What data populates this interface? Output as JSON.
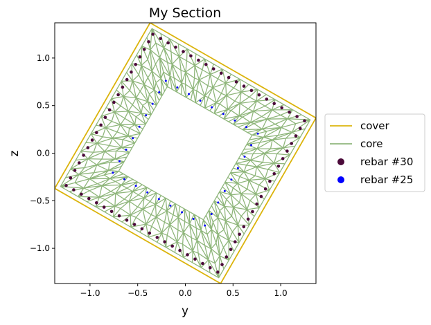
{
  "chart_data": {
    "type": "scatter",
    "title": "My Section",
    "xlabel": "y",
    "ylabel": "z",
    "xlim": [
      -1.37,
      1.37
    ],
    "ylim": [
      -1.37,
      1.37
    ],
    "xticks": [
      -1.0,
      -0.5,
      0.0,
      0.5,
      1.0
    ],
    "yticks": [
      -1.0,
      -0.5,
      0.0,
      0.5,
      1.0
    ],
    "xtick_labels": [
      "−1.0",
      "−0.5",
      "0.0",
      "0.5",
      "1.0"
    ],
    "ytick_labels": [
      "−1.0",
      "−0.5",
      "0.0",
      "0.5",
      "1.0"
    ],
    "grid": false,
    "legend_placement": "outside-right",
    "colors": {
      "cover": "#dbb40c",
      "core": "#8fb67b",
      "rebar30": "#4b0a3a",
      "rebar25": "#0000ff"
    },
    "series": [
      {
        "name": "cover",
        "kind": "line",
        "color": "#dbb40c",
        "points": [
          [
            -1.37,
            -0.37
          ],
          [
            0.37,
            -1.37
          ],
          [
            1.37,
            0.37
          ],
          [
            -0.37,
            1.37
          ],
          [
            -1.37,
            -0.37
          ]
        ]
      },
      {
        "name": "core",
        "kind": "mesh",
        "color": "#8fb67b",
        "outer_ring": [
          [
            -1.31,
            -0.35
          ],
          [
            0.35,
            -1.31
          ],
          [
            1.31,
            0.35
          ],
          [
            -0.35,
            1.31
          ]
        ],
        "inner_ring": [
          [
            -0.7,
            -0.19
          ],
          [
            0.19,
            -0.7
          ],
          [
            0.7,
            0.19
          ],
          [
            -0.19,
            0.7
          ]
        ]
      },
      {
        "name": "rebar #30",
        "kind": "points",
        "color": "#4b0a3a",
        "corners": [
          [
            -1.25,
            -0.34
          ],
          [
            0.34,
            -1.25
          ],
          [
            1.25,
            0.34
          ],
          [
            -0.34,
            1.25
          ]
        ],
        "per_side": 20
      },
      {
        "name": "rebar #25",
        "kind": "points",
        "color": "#0000ff",
        "corners": [
          [
            -0.76,
            -0.205
          ],
          [
            0.205,
            -0.76
          ],
          [
            0.76,
            0.205
          ],
          [
            -0.205,
            0.76
          ]
        ],
        "per_side": 8
      }
    ]
  },
  "legend": {
    "items": [
      {
        "label": "cover",
        "kind": "line",
        "color": "#dbb40c"
      },
      {
        "label": "core",
        "kind": "line",
        "color": "#8fb67b"
      },
      {
        "label": "rebar #30",
        "kind": "dot",
        "color": "#4b0a3a"
      },
      {
        "label": "rebar #25",
        "kind": "dot",
        "color": "#0000ff"
      }
    ]
  }
}
